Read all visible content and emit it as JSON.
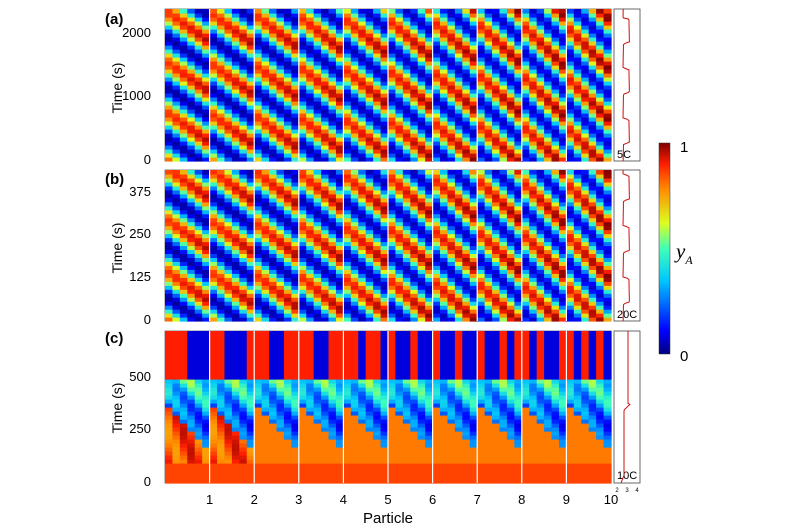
{
  "chart_data": [
    {
      "type": "heatmap",
      "panel_label": "(a)",
      "ylabel": "Time (s)",
      "yticks": [
        "0",
        "1000",
        "2000"
      ],
      "ytick_values": [
        0,
        1000,
        2000
      ],
      "ylim": [
        0,
        2300
      ],
      "particles": 10,
      "cycle_period_s": 760,
      "pattern": "smooth-bands",
      "side_curve_label": "5C"
    },
    {
      "type": "heatmap",
      "panel_label": "(b)",
      "ylabel": "Time (s)",
      "yticks": [
        "0",
        "125",
        "250",
        "375"
      ],
      "ytick_values": [
        0,
        125,
        250,
        375
      ],
      "ylim": [
        0,
        440
      ],
      "particles": 10,
      "cycle_period_s": 150,
      "pattern": "smooth-bands",
      "side_curve_label": "20C"
    },
    {
      "type": "heatmap",
      "panel_label": "(c)",
      "ylabel": "Time (s)",
      "yticks": [
        "0",
        "250",
        "500"
      ],
      "ytick_values": [
        0,
        250,
        500
      ],
      "ylim": [
        0,
        700
      ],
      "particles": 10,
      "pattern": "sharp-fronts",
      "side_curve_label": "10C",
      "side_curve_ticks": [
        "2",
        "3",
        "4"
      ]
    }
  ],
  "xaxis": {
    "xlabel": "Particle",
    "xticks": [
      "1",
      "2",
      "3",
      "4",
      "5",
      "6",
      "7",
      "8",
      "9",
      "10"
    ]
  },
  "colorbar": {
    "label": "y",
    "label_sub": "A",
    "ticks": [
      "0",
      "1"
    ],
    "range": [
      0,
      1
    ],
    "colormap": "jet"
  }
}
